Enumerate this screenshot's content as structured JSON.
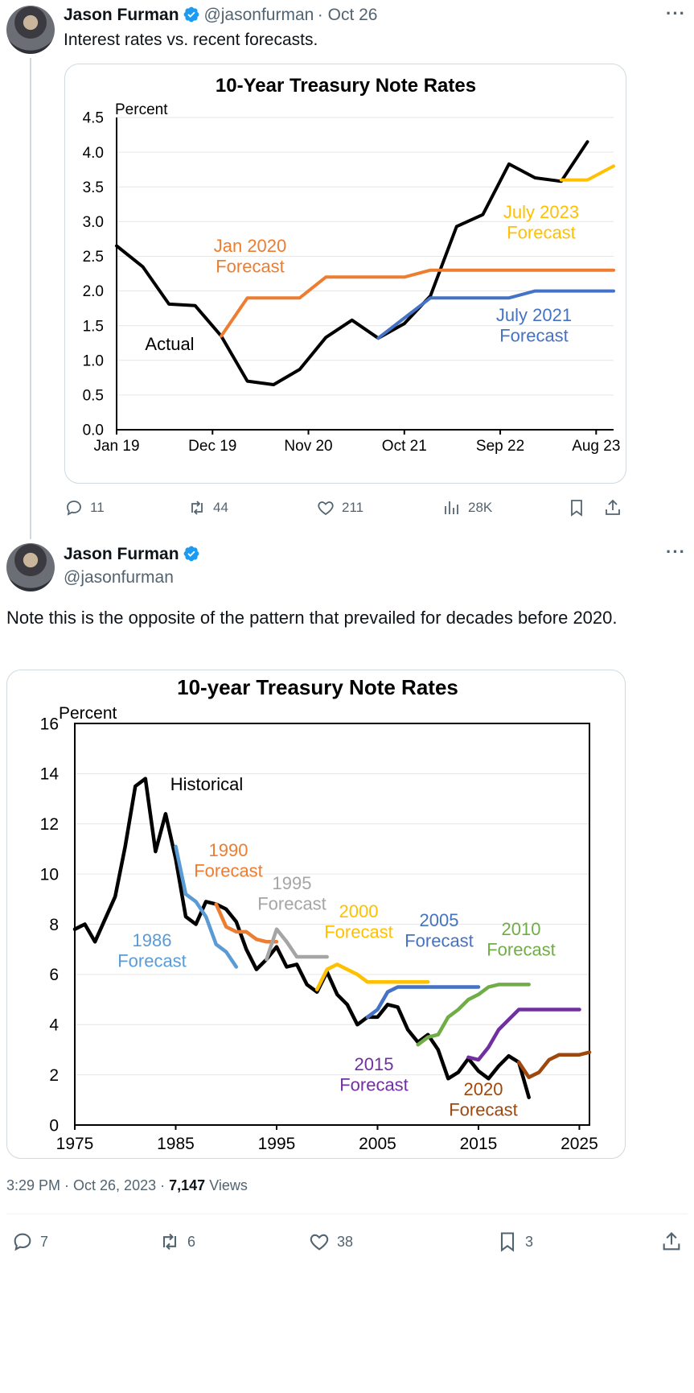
{
  "tweet1": {
    "name": "Jason Furman",
    "handle": "@jasonfurman",
    "date": "· Oct 26",
    "text": "Interest rates vs. recent forecasts.",
    "stats": {
      "replies": "11",
      "retweets": "44",
      "likes": "211",
      "views": "28K"
    }
  },
  "tweet2": {
    "name": "Jason Furman",
    "handle": "@jasonfurman",
    "text": "Note this is the opposite of the pattern that prevailed for decades before 2020.",
    "timestamp": "3:29 PM · Oct 26, 2023 ·",
    "views_count": "7,147",
    "views_label": "Views",
    "stats": {
      "replies": "7",
      "retweets": "6",
      "likes": "38",
      "bookmarks": "3"
    }
  },
  "colors": {
    "black": "#000000",
    "orange": "#ed7d31",
    "blue": "#4472c4",
    "gold": "#ffc000",
    "light_blue": "#5b9bd5",
    "gray": "#a5a5a5",
    "green": "#70ad47",
    "purple": "#7030a0",
    "brown": "#9e480e"
  },
  "chart_data": [
    {
      "type": "line",
      "title": "10-Year Treasury Note Rates",
      "ylabel": "Percent",
      "ylim": [
        0,
        4.5
      ],
      "yticks": [
        "0.0",
        "0.5",
        "1.0",
        "1.5",
        "2.0",
        "2.5",
        "3.0",
        "3.5",
        "4.0",
        "4.5"
      ],
      "xticks": [
        "Jan 19",
        "Dec 19",
        "Nov 20",
        "Oct 21",
        "Sep 22",
        "Aug 23"
      ],
      "x_unit": "months since Jan 2019",
      "series": [
        {
          "name": "Actual",
          "color": "#000000",
          "points": [
            [
              0,
              2.65
            ],
            [
              3,
              2.35
            ],
            [
              6,
              1.81
            ],
            [
              9,
              1.79
            ],
            [
              12,
              1.35
            ],
            [
              15,
              0.7
            ],
            [
              18,
              0.65
            ],
            [
              21,
              0.87
            ],
            [
              24,
              1.33
            ],
            [
              27,
              1.58
            ],
            [
              30,
              1.32
            ],
            [
              33,
              1.53
            ],
            [
              36,
              1.93
            ],
            [
              39,
              2.93
            ],
            [
              42,
              3.1
            ],
            [
              45,
              3.83
            ],
            [
              48,
              3.63
            ],
            [
              51,
              3.58
            ],
            [
              54,
              4.15
            ]
          ]
        },
        {
          "name": "Jan 2020 Forecast",
          "color": "#ed7d31",
          "points": [
            [
              12,
              1.35
            ],
            [
              15,
              1.9
            ],
            [
              21,
              1.9
            ],
            [
              24,
              2.2
            ],
            [
              33,
              2.2
            ],
            [
              36,
              2.3
            ],
            [
              57,
              2.3
            ]
          ]
        },
        {
          "name": "July 2021 Forecast",
          "color": "#4472c4",
          "points": [
            [
              30,
              1.32
            ],
            [
              36,
              1.9
            ],
            [
              45,
              1.9
            ],
            [
              48,
              2.0
            ],
            [
              57,
              2.0
            ]
          ]
        },
        {
          "name": "July 2023 Forecast",
          "color": "#ffc000",
          "points": [
            [
              51,
              3.6
            ],
            [
              54,
              3.6
            ],
            [
              57,
              3.8
            ]
          ]
        }
      ]
    },
    {
      "type": "line",
      "title": "10-year Treasury Note Rates",
      "ylabel": "Percent",
      "xlim": [
        1975,
        2026
      ],
      "ylim": [
        0,
        16
      ],
      "yticks": [
        "0",
        "2",
        "4",
        "6",
        "8",
        "10",
        "12",
        "14",
        "16"
      ],
      "xticks": [
        "1975",
        "1985",
        "1995",
        "2005",
        "2015",
        "2025"
      ],
      "series": [
        {
          "name": "Historical",
          "color": "#000000",
          "points": [
            [
              1975,
              7.8
            ],
            [
              1976,
              8.0
            ],
            [
              1977,
              7.3
            ],
            [
              1978,
              8.2
            ],
            [
              1979,
              9.1
            ],
            [
              1980,
              11.1
            ],
            [
              1981,
              13.5
            ],
            [
              1982,
              13.8
            ],
            [
              1983,
              10.9
            ],
            [
              1984,
              12.4
            ],
            [
              1985,
              10.6
            ],
            [
              1986,
              8.3
            ],
            [
              1987,
              8.0
            ],
            [
              1988,
              8.9
            ],
            [
              1989,
              8.8
            ],
            [
              1990,
              8.6
            ],
            [
              1991,
              8.1
            ],
            [
              1992,
              7.0
            ],
            [
              1993,
              6.2
            ],
            [
              1994,
              6.6
            ],
            [
              1995,
              7.1
            ],
            [
              1996,
              6.3
            ],
            [
              1997,
              6.4
            ],
            [
              1998,
              5.6
            ],
            [
              1999,
              5.3
            ],
            [
              2000,
              6.1
            ],
            [
              2001,
              5.2
            ],
            [
              2002,
              4.8
            ],
            [
              2003,
              4.0
            ],
            [
              2004,
              4.3
            ],
            [
              2005,
              4.3
            ],
            [
              2006,
              4.8
            ],
            [
              2007,
              4.7
            ],
            [
              2008,
              3.8
            ],
            [
              2009,
              3.3
            ],
            [
              2010,
              3.6
            ],
            [
              2011,
              3.0
            ],
            [
              2012,
              1.85
            ],
            [
              2013,
              2.1
            ],
            [
              2014,
              2.65
            ],
            [
              2015,
              2.15
            ],
            [
              2016,
              1.85
            ],
            [
              2017,
              2.35
            ],
            [
              2018,
              2.75
            ],
            [
              2019,
              2.5
            ],
            [
              2020,
              1.1
            ]
          ]
        },
        {
          "name": "1986 Forecast",
          "color": "#5b9bd5",
          "points": [
            [
              1985,
              11.1
            ],
            [
              1986,
              9.2
            ],
            [
              1987,
              8.9
            ],
            [
              1988,
              8.3
            ],
            [
              1989,
              7.2
            ],
            [
              1990,
              6.9
            ],
            [
              1991,
              6.3
            ]
          ]
        },
        {
          "name": "1990 Forecast",
          "color": "#ed7d31",
          "points": [
            [
              1989,
              8.8
            ],
            [
              1990,
              7.9
            ],
            [
              1991,
              7.7
            ],
            [
              1992,
              7.7
            ],
            [
              1993,
              7.4
            ],
            [
              1994,
              7.3
            ],
            [
              1995,
              7.3
            ]
          ]
        },
        {
          "name": "1995 Forecast",
          "color": "#a5a5a5",
          "points": [
            [
              1994,
              6.6
            ],
            [
              1995,
              7.8
            ],
            [
              1996,
              7.3
            ],
            [
              1997,
              6.7
            ],
            [
              1998,
              6.7
            ],
            [
              1999,
              6.7
            ],
            [
              2000,
              6.7
            ]
          ]
        },
        {
          "name": "2000 Forecast",
          "color": "#ffc000",
          "points": [
            [
              1999,
              5.4
            ],
            [
              2000,
              6.2
            ],
            [
              2001,
              6.4
            ],
            [
              2002,
              6.2
            ],
            [
              2003,
              6.0
            ],
            [
              2004,
              5.7
            ],
            [
              2005,
              5.7
            ],
            [
              2010,
              5.7
            ]
          ]
        },
        {
          "name": "2005 Forecast",
          "color": "#4472c4",
          "points": [
            [
              2004,
              4.3
            ],
            [
              2005,
              4.6
            ],
            [
              2006,
              5.3
            ],
            [
              2007,
              5.5
            ],
            [
              2015,
              5.5
            ]
          ]
        },
        {
          "name": "2010 Forecast",
          "color": "#70ad47",
          "points": [
            [
              2009,
              3.2
            ],
            [
              2010,
              3.5
            ],
            [
              2011,
              3.6
            ],
            [
              2012,
              4.3
            ],
            [
              2013,
              4.6
            ],
            [
              2014,
              5.0
            ],
            [
              2015,
              5.2
            ],
            [
              2016,
              5.5
            ],
            [
              2017,
              5.6
            ],
            [
              2020,
              5.6
            ]
          ]
        },
        {
          "name": "2015 Forecast",
          "color": "#7030a0",
          "points": [
            [
              2014,
              2.7
            ],
            [
              2015,
              2.6
            ],
            [
              2016,
              3.1
            ],
            [
              2017,
              3.8
            ],
            [
              2018,
              4.2
            ],
            [
              2019,
              4.6
            ],
            [
              2025,
              4.6
            ]
          ]
        },
        {
          "name": "2020 Forecast",
          "color": "#9e480e",
          "points": [
            [
              2019,
              2.5
            ],
            [
              2020,
              1.9
            ],
            [
              2021,
              2.1
            ],
            [
              2022,
              2.6
            ],
            [
              2023,
              2.8
            ],
            [
              2025,
              2.8
            ],
            [
              2026,
              2.9
            ]
          ]
        }
      ]
    }
  ]
}
